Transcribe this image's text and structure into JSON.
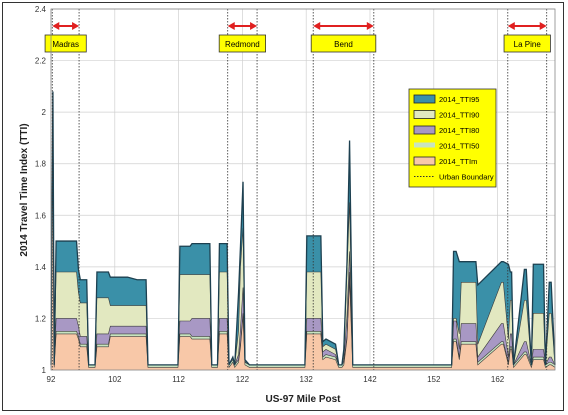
{
  "chart_data": {
    "type": "area",
    "title": "",
    "xlabel": "US-97 Mile Post",
    "ylabel": "2014 Travel Time Index (TTI)",
    "xlim": [
      92,
      171
    ],
    "ylim": [
      1,
      2.4
    ],
    "x_ticks": [
      92,
      102,
      112,
      122,
      132,
      142,
      152,
      162
    ],
    "x_tick_labels": [
      "92",
      "102",
      "112",
      "122",
      "132",
      "142",
      "152",
      "162"
    ],
    "y_ticks": [
      1,
      1.2,
      1.4,
      1.6,
      1.8,
      2,
      2.2,
      2.4
    ],
    "y_tick_labels": [
      "1",
      "1.2",
      "1.4",
      "1.6",
      "1.8",
      "2",
      "2.2",
      "2.4"
    ],
    "grid": "horizontal and vertical",
    "legend_position": "right",
    "legend": [
      {
        "name": "2014_TTI95",
        "color": "#3a90a8"
      },
      {
        "name": "2014_TTI90",
        "color": "#e2e8c0"
      },
      {
        "name": "2014_TTI80",
        "color": "#a898c4"
      },
      {
        "name": "2014_TTI50",
        "color": "#c8e4c0"
      },
      {
        "name": "2014_TTIm",
        "color": "#f8c8a8"
      },
      {
        "name": "Urban Boundary",
        "color": "#333333"
      }
    ],
    "urban_areas": [
      {
        "name": "Madras",
        "start": 92.2,
        "end": 96.4
      },
      {
        "name": "Redmond",
        "start": 119.7,
        "end": 124.3
      },
      {
        "name": "Bend",
        "start": 133.1,
        "end": 142.6
      },
      {
        "name": "La Pine",
        "start": 163.6,
        "end": 169.7
      }
    ],
    "x": [
      92,
      92.3,
      92.5,
      92.8,
      96,
      96.3,
      96.6,
      97.6,
      97.9,
      98.9,
      99.2,
      101,
      101.3,
      104,
      105.5,
      106.9,
      107.2,
      111.9,
      112.2,
      113.8,
      114.1,
      116.9,
      117.2,
      118.1,
      118.4,
      119.6,
      119.9,
      120.5,
      120.8,
      121.4,
      121.7,
      122.1,
      122.4,
      123.1,
      123.4,
      124.3,
      131.8,
      132.1,
      134.3,
      134.6,
      135.1,
      136.6,
      137.1,
      137.6,
      137.9,
      138.4,
      138.8,
      139.3,
      139.5,
      139.9,
      140.2,
      140.8,
      141.1,
      149,
      154.8,
      155.1,
      155.5,
      156,
      156.3,
      158.6,
      158.9,
      162.6,
      162.9,
      163.7,
      164,
      164.2,
      164.5,
      166.2,
      166.5,
      167.3,
      167.6,
      169.2,
      169.5,
      170.1,
      170.4,
      171
    ],
    "series": [
      {
        "name": "2014_TTIm",
        "values": [
          1.01,
          2.06,
          1.01,
          1.14,
          1.14,
          1.12,
          1.09,
          1.09,
          1.01,
          1.01,
          1.09,
          1.09,
          1.13,
          1.13,
          1.13,
          1.13,
          1.01,
          1.01,
          1.13,
          1.13,
          1.12,
          1.12,
          1.01,
          1.01,
          1.14,
          1.14,
          1.01,
          1.03,
          1.01,
          1.03,
          1.09,
          1.21,
          1.02,
          1.01,
          1.01,
          1.01,
          1.01,
          1.14,
          1.14,
          1.04,
          1.05,
          1.04,
          1.01,
          1.01,
          1.02,
          1.12,
          1.35,
          1.01,
          1.01,
          1.01,
          1.01,
          1.01,
          1.01,
          1.01,
          1.01,
          1.11,
          1.11,
          1.04,
          1.1,
          1.1,
          1.02,
          1.1,
          1.1,
          1.02,
          1.08,
          1.08,
          1.01,
          1.06,
          1.06,
          1.01,
          1.04,
          1.04,
          1.01,
          1.02,
          1.02,
          1.01
        ]
      },
      {
        "name": "2014_TTI50",
        "values": [
          1.02,
          2.07,
          1.02,
          1.15,
          1.15,
          1.13,
          1.1,
          1.1,
          1.02,
          1.02,
          1.1,
          1.1,
          1.14,
          1.14,
          1.14,
          1.14,
          1.02,
          1.02,
          1.14,
          1.14,
          1.13,
          1.13,
          1.02,
          1.02,
          1.15,
          1.15,
          1.02,
          1.04,
          1.02,
          1.04,
          1.1,
          1.22,
          1.03,
          1.02,
          1.02,
          1.02,
          1.02,
          1.15,
          1.15,
          1.05,
          1.06,
          1.05,
          1.02,
          1.02,
          1.03,
          1.13,
          1.38,
          1.02,
          1.02,
          1.02,
          1.02,
          1.02,
          1.02,
          1.02,
          1.02,
          1.12,
          1.12,
          1.05,
          1.11,
          1.11,
          1.03,
          1.11,
          1.11,
          1.03,
          1.09,
          1.09,
          1.02,
          1.07,
          1.07,
          1.02,
          1.05,
          1.05,
          1.02,
          1.03,
          1.03,
          1.02
        ]
      },
      {
        "name": "2014_TTI80",
        "values": [
          1.02,
          2.08,
          1.02,
          1.2,
          1.2,
          1.17,
          1.13,
          1.13,
          1.02,
          1.02,
          1.14,
          1.14,
          1.17,
          1.17,
          1.17,
          1.17,
          1.02,
          1.02,
          1.19,
          1.19,
          1.2,
          1.2,
          1.02,
          1.02,
          1.2,
          1.2,
          1.02,
          1.05,
          1.02,
          1.06,
          1.16,
          1.32,
          1.03,
          1.02,
          1.02,
          1.02,
          1.02,
          1.2,
          1.2,
          1.07,
          1.08,
          1.06,
          1.02,
          1.02,
          1.04,
          1.21,
          1.46,
          1.02,
          1.02,
          1.02,
          1.02,
          1.02,
          1.02,
          1.02,
          1.02,
          1.19,
          1.19,
          1.08,
          1.18,
          1.18,
          1.05,
          1.18,
          1.18,
          1.05,
          1.14,
          1.14,
          1.02,
          1.11,
          1.11,
          1.02,
          1.08,
          1.08,
          1.02,
          1.05,
          1.05,
          1.02
        ]
      },
      {
        "name": "2014_TTI90",
        "values": [
          1.02,
          2.08,
          1.02,
          1.38,
          1.38,
          1.3,
          1.26,
          1.26,
          1.02,
          1.02,
          1.28,
          1.28,
          1.25,
          1.25,
          1.25,
          1.25,
          1.02,
          1.02,
          1.37,
          1.37,
          1.37,
          1.37,
          1.02,
          1.02,
          1.38,
          1.38,
          1.02,
          1.05,
          1.02,
          1.15,
          1.4,
          1.55,
          1.03,
          1.02,
          1.02,
          1.02,
          1.02,
          1.38,
          1.38,
          1.09,
          1.1,
          1.08,
          1.02,
          1.02,
          1.06,
          1.39,
          1.65,
          1.02,
          1.02,
          1.02,
          1.02,
          1.02,
          1.02,
          1.02,
          1.02,
          1.2,
          1.2,
          1.14,
          1.34,
          1.34,
          1.1,
          1.34,
          1.34,
          1.12,
          1.27,
          1.27,
          1.02,
          1.27,
          1.27,
          1.02,
          1.22,
          1.22,
          1.02,
          1.22,
          1.22,
          1.02
        ]
      },
      {
        "name": "2014_TTI95",
        "values": [
          1.02,
          2.08,
          1.02,
          1.5,
          1.5,
          1.39,
          1.35,
          1.35,
          1.02,
          1.02,
          1.38,
          1.38,
          1.36,
          1.36,
          1.35,
          1.35,
          1.02,
          1.02,
          1.48,
          1.48,
          1.49,
          1.49,
          1.02,
          1.02,
          1.49,
          1.49,
          1.02,
          1.05,
          1.02,
          1.3,
          1.48,
          1.73,
          1.04,
          1.02,
          1.02,
          1.02,
          1.02,
          1.52,
          1.52,
          1.11,
          1.12,
          1.1,
          1.02,
          1.02,
          1.08,
          1.42,
          1.89,
          1.02,
          1.02,
          1.02,
          1.02,
          1.02,
          1.02,
          1.02,
          1.02,
          1.46,
          1.46,
          1.42,
          1.42,
          1.42,
          1.33,
          1.42,
          1.42,
          1.41,
          1.38,
          1.38,
          1.02,
          1.39,
          1.39,
          1.02,
          1.41,
          1.41,
          1.02,
          1.34,
          1.34,
          1.02
        ]
      }
    ]
  }
}
